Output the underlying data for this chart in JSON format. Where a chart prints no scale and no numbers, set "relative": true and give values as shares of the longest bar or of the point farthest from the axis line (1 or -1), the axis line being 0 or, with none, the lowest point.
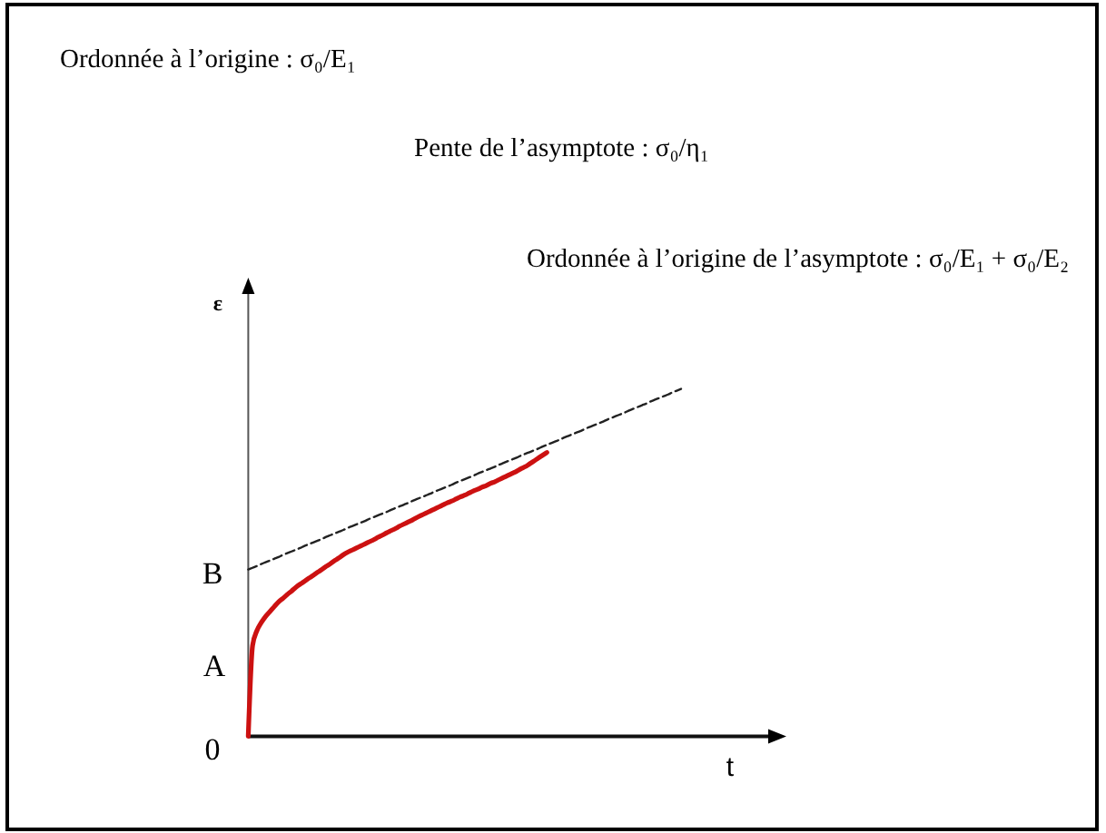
{
  "chart_data": {
    "type": "line",
    "relative": true,
    "xlabel": "t",
    "ylabel": "ε",
    "categories": [
      null,
      null,
      null,
      null,
      null,
      null,
      null,
      null,
      null,
      null,
      null,
      null,
      null,
      null,
      null,
      null,
      null,
      null,
      null,
      null,
      null,
      null,
      null,
      null,
      null,
      null,
      null,
      null,
      null,
      null,
      null,
      null,
      null,
      null,
      null,
      null,
      null,
      null,
      null,
      null,
      null,
      null,
      null,
      null,
      null,
      null,
      null,
      null,
      null,
      null,
      null,
      null,
      null,
      null,
      null,
      null,
      null,
      null,
      null,
      null,
      null,
      null,
      null,
      null,
      null,
      null,
      null,
      null,
      null,
      null,
      null,
      null,
      null,
      null,
      null,
      null,
      null,
      null,
      null,
      null,
      null,
      null,
      null,
      null,
      null,
      null,
      null,
      null,
      null,
      null,
      null,
      null,
      null,
      null,
      null,
      null,
      null,
      null,
      null,
      null,
      null
    ],
    "series": [
      {
        "color": "#cc1111",
        "values": [
          0,
          0.261,
          0.304,
          0.327,
          0.345,
          0.359,
          0.373,
          0.387,
          0.397,
          0.408,
          0.418,
          0.429,
          0.438,
          0.446,
          0.455,
          0.463,
          0.472,
          0.48,
          0.489,
          0.497,
          0.506,
          0.514,
          0.523,
          0.53,
          0.536,
          0.542,
          0.548,
          0.554,
          0.56,
          0.566,
          0.573,
          0.579,
          0.586,
          0.592,
          0.598,
          0.605,
          0.611,
          0.617,
          0.623,
          0.63,
          0.636,
          0.642,
          0.648,
          0.654,
          0.66,
          0.666,
          0.672,
          0.677,
          0.683,
          0.689,
          0.694,
          0.7,
          0.706,
          0.711,
          0.717,
          0.722,
          0.728,
          0.733,
          0.739,
          0.745,
          0.751,
          0.757,
          0.763,
          0.77,
          0.776,
          0.784,
          0.792,
          0.801,
          0.809,
          0.817,
          null,
          null,
          null,
          null,
          null,
          null,
          null,
          null,
          null,
          null,
          null,
          null,
          null,
          null,
          null,
          null,
          null,
          null,
          null,
          null,
          null,
          null,
          null,
          null,
          null,
          null,
          null,
          null,
          null,
          null,
          null
        ]
      },
      {
        "color": "#222222",
        "line_style": "dashed",
        "values": [
          0.48,
          0.485,
          0.49,
          0.496,
          0.501,
          0.506,
          0.511,
          0.516,
          0.522,
          0.527,
          0.532,
          0.537,
          0.542,
          0.548,
          0.553,
          0.558,
          0.563,
          0.568,
          0.574,
          0.579,
          0.584,
          0.589,
          0.594,
          0.6,
          0.605,
          0.61,
          0.615,
          0.62,
          0.626,
          0.631,
          0.636,
          0.641,
          0.646,
          0.652,
          0.657,
          0.662,
          0.667,
          0.672,
          0.678,
          0.683,
          0.688,
          0.693,
          0.698,
          0.704,
          0.709,
          0.714,
          0.719,
          0.724,
          0.73,
          0.735,
          0.74,
          0.745,
          0.75,
          0.756,
          0.761,
          0.766,
          0.771,
          0.776,
          0.782,
          0.787,
          0.792,
          0.797,
          0.802,
          0.808,
          0.813,
          0.818,
          0.823,
          0.828,
          0.834,
          0.839,
          0.844,
          0.849,
          0.854,
          0.86,
          0.865,
          0.87,
          0.875,
          0.88,
          0.886,
          0.891,
          0.896,
          0.901,
          0.906,
          0.912,
          0.917,
          0.922,
          0.927,
          0.932,
          0.938,
          0.943,
          0.948,
          0.953,
          0.958,
          0.964,
          0.969,
          0.974,
          0.979,
          0.984,
          0.99,
          0.995,
          1.0
        ]
      }
    ],
    "annotations": [
      "Ordonnée à l’origine : σ₀/E₁",
      "Pente de l’asymptote : σ₀/η₁",
      "Ordonnée à l’origine de l’asymptote : σ₀/E₁ + σ₀/E₂",
      "0",
      "A",
      "B"
    ]
  }
}
